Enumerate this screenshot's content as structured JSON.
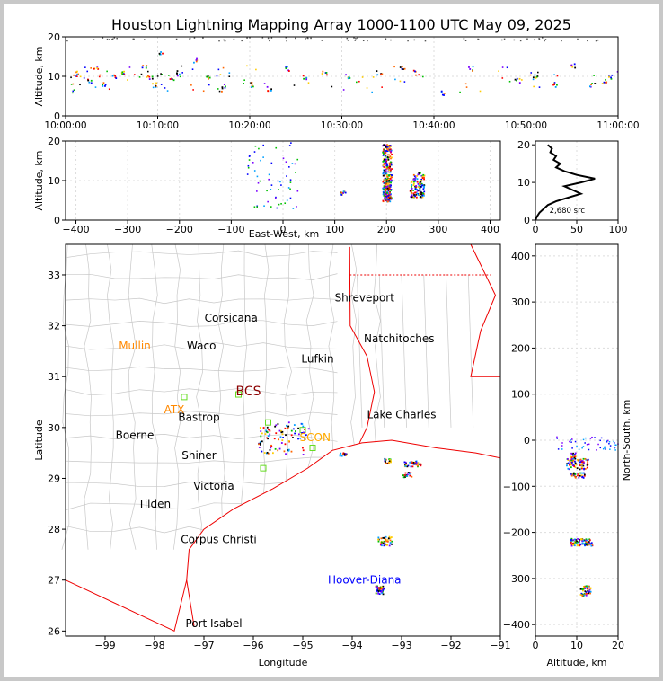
{
  "figure": {
    "title": "Houston Lightning Mapping Array 1000-1100 UTC May 09, 2025"
  },
  "colors": {
    "frame_bg": "#c8c8c8",
    "coast": "#ee0000",
    "state_border": "#ee0000",
    "county": "#c8c8c8",
    "grid": "#dddddd",
    "site_marker": "#66dd22",
    "label_default": "#000000",
    "label_orange": "#ff8800",
    "label_gold": "#ffaa00",
    "label_blue": "#0000ff",
    "label_bcs": "#8b0000"
  },
  "chart_data": [
    {
      "id": "time-height",
      "type": "scatter",
      "xlabel": "",
      "ylabel": "Altitude, km",
      "x_tick_labels": [
        "10:00:00",
        "10:10:00",
        "10:20:00",
        "10:30:00",
        "10:40:00",
        "10:50:00",
        "11:00:00"
      ],
      "xlim": [
        "10:00:00",
        "11:00:00"
      ],
      "ylim": [
        0,
        20
      ],
      "y_ticks": [
        0,
        10,
        20
      ],
      "grid": true,
      "points": [
        {
          "t": "10:01:00",
          "alt": 11
        },
        {
          "t": "10:02:30",
          "alt": 9
        },
        {
          "t": "10:03:10",
          "alt": 12
        },
        {
          "t": "10:04:00",
          "alt": 8
        },
        {
          "t": "10:05:20",
          "alt": 10
        },
        {
          "t": "10:06:00",
          "alt": 11
        },
        {
          "t": "10:08:30",
          "alt": 13
        },
        {
          "t": "10:09:10",
          "alt": 10
        },
        {
          "t": "10:09:40",
          "alt": 8
        },
        {
          "t": "10:10:20",
          "alt": 16
        },
        {
          "t": "10:11:30",
          "alt": 9
        },
        {
          "t": "10:12:10",
          "alt": 11
        },
        {
          "t": "10:14:00",
          "alt": 14
        },
        {
          "t": "10:15:20",
          "alt": 10
        },
        {
          "t": "10:17:00",
          "alt": 7
        },
        {
          "t": "10:20:00",
          "alt": 8
        },
        {
          "t": "10:22:00",
          "alt": 7
        },
        {
          "t": "10:24:00",
          "alt": 12
        },
        {
          "t": "10:26:00",
          "alt": 10
        },
        {
          "t": "10:28:00",
          "alt": 11
        },
        {
          "t": "10:30:30",
          "alt": 10
        },
        {
          "t": "10:34:00",
          "alt": 11
        },
        {
          "t": "10:36:30",
          "alt": 12
        },
        {
          "t": "10:38:00",
          "alt": 11
        },
        {
          "t": "10:41:00",
          "alt": 6
        },
        {
          "t": "10:44:00",
          "alt": 12
        },
        {
          "t": "10:49:00",
          "alt": 9
        },
        {
          "t": "10:51:00",
          "alt": 10
        },
        {
          "t": "10:53:00",
          "alt": 8
        },
        {
          "t": "10:55:00",
          "alt": 13
        },
        {
          "t": "10:57:10",
          "alt": 8
        },
        {
          "t": "10:58:30",
          "alt": 9
        },
        {
          "t": "10:59:00",
          "alt": 10
        }
      ]
    },
    {
      "id": "ew-altitude",
      "type": "scatter",
      "xlabel": "East-West, km",
      "ylabel": "Altitude, km",
      "xlim": [
        -420,
        420
      ],
      "ylim": [
        0,
        20
      ],
      "x_ticks": [
        -400,
        -300,
        -200,
        -100,
        0,
        100,
        200,
        300,
        400
      ],
      "y_ticks": [
        0,
        10,
        20
      ],
      "grid": true,
      "points": [
        {
          "x": -60,
          "y": 15
        },
        {
          "x": -40,
          "y": 10
        },
        {
          "x": -20,
          "y": 17
        },
        {
          "x": 5,
          "y": 12
        },
        {
          "x": 20,
          "y": 14
        },
        {
          "x": -10,
          "y": 5
        },
        {
          "x": 115,
          "y": 7
        },
        {
          "x": 195,
          "y": 10
        },
        {
          "x": 200,
          "y": 15
        },
        {
          "x": 205,
          "y": 8
        },
        {
          "x": 250,
          "y": 9
        },
        {
          "x": 265,
          "y": 11
        }
      ]
    },
    {
      "id": "altitude-histogram",
      "type": "line",
      "xlim": [
        0,
        100
      ],
      "ylim": [
        0,
        21
      ],
      "x_ticks": [
        0,
        50,
        100
      ],
      "y_ticks": [
        0,
        10,
        20
      ],
      "annotation": "2,680 src",
      "profile": [
        [
          0,
          0
        ],
        [
          2,
          1
        ],
        [
          5,
          2
        ],
        [
          10,
          3
        ],
        [
          15,
          4
        ],
        [
          25,
          5
        ],
        [
          40,
          6
        ],
        [
          55,
          7
        ],
        [
          45,
          8
        ],
        [
          35,
          9
        ],
        [
          55,
          10
        ],
        [
          72,
          11
        ],
        [
          50,
          12
        ],
        [
          35,
          13
        ],
        [
          25,
          14
        ],
        [
          30,
          15
        ],
        [
          22,
          16
        ],
        [
          25,
          17
        ],
        [
          18,
          18
        ],
        [
          20,
          19
        ],
        [
          15,
          20
        ]
      ]
    },
    {
      "id": "plan-view",
      "type": "scatter",
      "xlabel": "Longitude",
      "ylabel": "Latitude",
      "xlim": [
        -99.8,
        -91
      ],
      "ylim": [
        25.9,
        33.6
      ],
      "x_ticks": [
        -99,
        -98,
        -97,
        -96,
        -95,
        -94,
        -93,
        -92,
        -91
      ],
      "y_ticks": [
        26,
        27,
        28,
        29,
        30,
        31,
        32,
        33
      ],
      "points": [
        {
          "lon": -95.6,
          "lat": 30.0
        },
        {
          "lon": -95.3,
          "lat": 29.9
        },
        {
          "lon": -95.1,
          "lat": 29.7
        },
        {
          "lon": -95.5,
          "lat": 29.6
        },
        {
          "lon": -94.2,
          "lat": 29.5
        },
        {
          "lon": -93.3,
          "lat": 29.35
        },
        {
          "lon": -92.8,
          "lat": 29.3
        },
        {
          "lon": -92.9,
          "lat": 29.1
        },
        {
          "lon": -93.3,
          "lat": 27.8
        },
        {
          "lon": -93.4,
          "lat": 26.8
        }
      ],
      "places": [
        {
          "name": "Shreveport",
          "lon": -93.75,
          "lat": 32.55,
          "color": "label_default"
        },
        {
          "name": "Corsicana",
          "lon": -96.45,
          "lat": 32.15,
          "color": "label_default"
        },
        {
          "name": "Natchitoches",
          "lon": -93.05,
          "lat": 31.75,
          "color": "label_default"
        },
        {
          "name": "Mullin",
          "lon": -98.4,
          "lat": 31.6,
          "color": "label_orange"
        },
        {
          "name": "Waco",
          "lon": -97.05,
          "lat": 31.6,
          "color": "label_default"
        },
        {
          "name": "Lufkin",
          "lon": -94.7,
          "lat": 31.35,
          "color": "label_default"
        },
        {
          "name": "BCS",
          "lon": -96.1,
          "lat": 30.7,
          "color": "label_bcs"
        },
        {
          "name": "ATX",
          "lon": -97.6,
          "lat": 30.35,
          "color": "label_orange"
        },
        {
          "name": "Bastrop",
          "lon": -97.1,
          "lat": 30.2,
          "color": "label_default"
        },
        {
          "name": "Lake Charles",
          "lon": -93.0,
          "lat": 30.25,
          "color": "label_default"
        },
        {
          "name": "Boerne",
          "lon": -98.4,
          "lat": 29.85,
          "color": "label_default"
        },
        {
          "name": "SCON",
          "lon": -94.75,
          "lat": 29.8,
          "color": "label_gold"
        },
        {
          "name": "Shiner",
          "lon": -97.1,
          "lat": 29.45,
          "color": "label_default"
        },
        {
          "name": "Victoria",
          "lon": -96.8,
          "lat": 28.85,
          "color": "label_default"
        },
        {
          "name": "Tilden",
          "lon": -98.0,
          "lat": 28.5,
          "color": "label_default"
        },
        {
          "name": "Corpus Christi",
          "lon": -96.7,
          "lat": 27.8,
          "color": "label_default"
        },
        {
          "name": "Hoover-Diana",
          "lon": -93.75,
          "lat": 27.0,
          "color": "label_blue"
        },
        {
          "name": "Port Isabel",
          "lon": -96.8,
          "lat": 26.15,
          "color": "label_default"
        }
      ],
      "sites": [
        {
          "lon": -97.4,
          "lat": 30.6
        },
        {
          "lon": -96.3,
          "lat": 30.65
        },
        {
          "lon": -95.7,
          "lat": 30.1
        },
        {
          "lon": -95.0,
          "lat": 29.95
        },
        {
          "lon": -94.8,
          "lat": 29.6
        },
        {
          "lon": -95.8,
          "lat": 29.2
        }
      ]
    },
    {
      "id": "ns-altitude",
      "type": "scatter",
      "xlabel": "Altitude, km",
      "ylabel": "North-South, km",
      "xlim": [
        0,
        20
      ],
      "ylim": [
        -425,
        425
      ],
      "x_ticks": [
        0,
        10,
        20
      ],
      "y_ticks": [
        -400,
        -300,
        -200,
        -100,
        0,
        100,
        200,
        300,
        400
      ],
      "grid": true,
      "points": [
        {
          "alt": 8,
          "y": -33
        },
        {
          "alt": 10,
          "y": -50
        },
        {
          "alt": 12,
          "y": -48
        },
        {
          "alt": 9,
          "y": -72
        },
        {
          "alt": 11,
          "y": -75
        },
        {
          "alt": 9,
          "y": -220
        },
        {
          "alt": 11,
          "y": -218
        },
        {
          "alt": 13,
          "y": -222
        },
        {
          "alt": 11,
          "y": -325
        },
        {
          "alt": 12,
          "y": -330
        },
        {
          "alt": 16,
          "y": 5
        }
      ]
    }
  ]
}
